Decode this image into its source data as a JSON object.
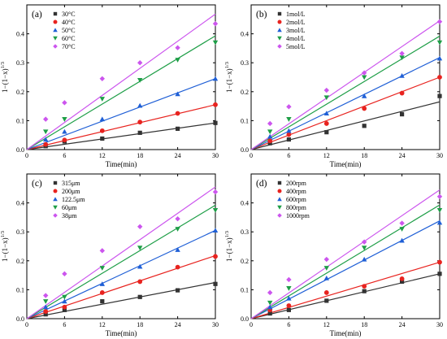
{
  "chart_data": [
    {
      "type": "scatter",
      "panel_label": "(a)",
      "xlabel": "Time(min)",
      "ylabel": "1−(1−x)^1/3",
      "xlim": [
        0,
        30
      ],
      "ylim": [
        0,
        0.5
      ],
      "xticks": [
        0,
        6,
        12,
        18,
        24,
        30
      ],
      "yticks": [
        0.0,
        0.1,
        0.2,
        0.3,
        0.4
      ],
      "ytick_labels": [
        "0.0",
        "0.1",
        "0.2",
        "0.3",
        "0.4"
      ],
      "legend_position": "top-left",
      "x": [
        3,
        6,
        12,
        18,
        24,
        30
      ],
      "series": [
        {
          "name": "30°C",
          "color": "#333333",
          "marker": "square",
          "values": [
            0.012,
            0.028,
            0.038,
            0.058,
            0.072,
            0.092
          ],
          "fit": [
            0,
            0.092
          ]
        },
        {
          "name": "40°C",
          "color": "#e8231f",
          "marker": "circle",
          "values": [
            0.018,
            0.033,
            0.065,
            0.095,
            0.125,
            0.155
          ],
          "fit": [
            0,
            0.155
          ]
        },
        {
          "name": "50°C",
          "color": "#1f5fd6",
          "marker": "triangle-up",
          "values": [
            0.035,
            0.062,
            0.105,
            0.152,
            0.192,
            0.245
          ],
          "fit": [
            0,
            0.245
          ]
        },
        {
          "name": "60°C",
          "color": "#1e9e47",
          "marker": "triangle-down",
          "values": [
            0.062,
            0.105,
            0.175,
            0.24,
            0.31,
            0.37
          ],
          "fit": [
            0,
            0.393
          ]
        },
        {
          "name": "70°C",
          "color": "#cc55ee",
          "marker": "diamond",
          "values": [
            0.105,
            0.162,
            0.245,
            0.3,
            0.352,
            0.435
          ],
          "fit": [
            0,
            0.468
          ]
        }
      ]
    },
    {
      "type": "scatter",
      "panel_label": "(b)",
      "xlabel": "Time(min)",
      "ylabel": "1−(1−x)^1/3",
      "xlim": [
        0,
        30
      ],
      "ylim": [
        0,
        0.5
      ],
      "xticks": [
        0,
        6,
        12,
        18,
        24,
        30
      ],
      "yticks": [
        0.0,
        0.1,
        0.2,
        0.3,
        0.4
      ],
      "ytick_labels": [
        "0.0",
        "0.1",
        "0.2",
        "0.3",
        "0.4"
      ],
      "legend_position": "top-left",
      "x": [
        3,
        6,
        12,
        18,
        24,
        30
      ],
      "series": [
        {
          "name": "1mol/L",
          "color": "#333333",
          "marker": "square",
          "values": [
            0.022,
            0.035,
            0.06,
            0.082,
            0.122,
            0.185
          ],
          "fit": [
            0,
            0.165
          ]
        },
        {
          "name": "2mol/L",
          "color": "#e8231f",
          "marker": "circle",
          "values": [
            0.03,
            0.052,
            0.09,
            0.142,
            0.195,
            0.25
          ],
          "fit": [
            0,
            0.25
          ]
        },
        {
          "name": "3mol/L",
          "color": "#1f5fd6",
          "marker": "triangle-up",
          "values": [
            0.045,
            0.065,
            0.125,
            0.185,
            0.255,
            0.315
          ],
          "fit": [
            0,
            0.318
          ]
        },
        {
          "name": "4mol/L",
          "color": "#1e9e47",
          "marker": "triangle-down",
          "values": [
            0.062,
            0.105,
            0.18,
            0.25,
            0.318,
            0.37
          ],
          "fit": [
            0,
            0.392
          ]
        },
        {
          "name": "5mol/L",
          "color": "#cc55ee",
          "marker": "diamond",
          "values": [
            0.09,
            0.148,
            0.205,
            0.265,
            0.332,
            0.442
          ],
          "fit": [
            0,
            0.445
          ]
        }
      ]
    },
    {
      "type": "scatter",
      "panel_label": "(c)",
      "xlabel": "Time(min)",
      "ylabel": "1−(1−x)^1/3",
      "xlim": [
        0,
        30
      ],
      "ylim": [
        0,
        0.5
      ],
      "xticks": [
        0,
        6,
        12,
        18,
        24,
        30
      ],
      "yticks": [
        0.0,
        0.1,
        0.2,
        0.3,
        0.4
      ],
      "ytick_labels": [
        "0.0",
        "0.1",
        "0.2",
        "0.3",
        "0.4"
      ],
      "legend_position": "top-left",
      "x": [
        3,
        6,
        12,
        18,
        24,
        30
      ],
      "series": [
        {
          "name": "315μm",
          "color": "#333333",
          "marker": "square",
          "values": [
            0.015,
            0.03,
            0.06,
            0.075,
            0.098,
            0.12
          ],
          "fit": [
            0,
            0.125
          ]
        },
        {
          "name": "200μm",
          "color": "#e8231f",
          "marker": "circle",
          "values": [
            0.025,
            0.04,
            0.09,
            0.128,
            0.178,
            0.215
          ],
          "fit": [
            0,
            0.218
          ]
        },
        {
          "name": "122.5μm",
          "color": "#1f5fd6",
          "marker": "triangle-up",
          "values": [
            0.04,
            0.06,
            0.12,
            0.18,
            0.238,
            0.305
          ],
          "fit": [
            0,
            0.305
          ]
        },
        {
          "name": "60μm",
          "color": "#1e9e47",
          "marker": "triangle-down",
          "values": [
            0.06,
            0.075,
            0.175,
            0.245,
            0.31,
            0.375
          ],
          "fit": [
            0,
            0.392
          ]
        },
        {
          "name": "38μm",
          "color": "#cc55ee",
          "marker": "diamond",
          "values": [
            0.08,
            0.155,
            0.235,
            0.318,
            0.345,
            0.438
          ],
          "fit": [
            0,
            0.455
          ]
        }
      ]
    },
    {
      "type": "scatter",
      "panel_label": "(d)",
      "xlabel": "Time(min)",
      "ylabel": "1−(1−x)^1/3",
      "xlim": [
        0,
        30
      ],
      "ylim": [
        0,
        0.5
      ],
      "xticks": [
        0,
        6,
        12,
        18,
        24,
        30
      ],
      "yticks": [
        0.0,
        0.1,
        0.2,
        0.3,
        0.4
      ],
      "ytick_labels": [
        "0.0",
        "0.1",
        "0.2",
        "0.3",
        "0.4"
      ],
      "legend_position": "top-left",
      "x": [
        3,
        6,
        12,
        18,
        24,
        30
      ],
      "series": [
        {
          "name": "200rpm",
          "color": "#333333",
          "marker": "square",
          "values": [
            0.018,
            0.03,
            0.062,
            0.095,
            0.128,
            0.155
          ],
          "fit": [
            0,
            0.155
          ]
        },
        {
          "name": "400rpm",
          "color": "#e8231f",
          "marker": "circle",
          "values": [
            0.03,
            0.045,
            0.09,
            0.112,
            0.138,
            0.195
          ],
          "fit": [
            0,
            0.195
          ]
        },
        {
          "name": "600rpm",
          "color": "#1f5fd6",
          "marker": "triangle-up",
          "values": [
            0.04,
            0.07,
            0.14,
            0.205,
            0.27,
            0.332
          ],
          "fit": [
            0,
            0.338
          ]
        },
        {
          "name": "800rpm",
          "color": "#1e9e47",
          "marker": "triangle-down",
          "values": [
            0.055,
            0.105,
            0.175,
            0.245,
            0.31,
            0.375
          ],
          "fit": [
            0,
            0.393
          ]
        },
        {
          "name": "1000rpm",
          "color": "#cc55ee",
          "marker": "diamond",
          "values": [
            0.09,
            0.135,
            0.205,
            0.265,
            0.33,
            0.422
          ],
          "fit": [
            0,
            0.445
          ]
        }
      ]
    }
  ]
}
